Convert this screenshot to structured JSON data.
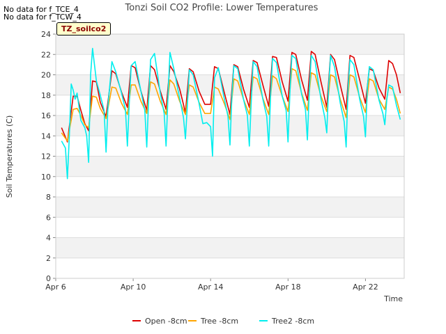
{
  "no_data_lines": [
    "No data for f_TCE_4",
    "No data for f_TCW_4"
  ],
  "badge": "TZ_soilco2",
  "chart_data": {
    "type": "line",
    "title": "Tonzi Soil CO2 Profile: Lower Temperatures",
    "xlabel": "Time",
    "ylabel": "Soil Temperatures (C)",
    "ylim": [
      0,
      24
    ],
    "yticks": [
      0,
      2,
      4,
      6,
      8,
      10,
      12,
      14,
      16,
      18,
      20,
      22,
      24
    ],
    "xlim": [
      6,
      24
    ],
    "xticks": [
      {
        "value": 6,
        "label": "Apr 6"
      },
      {
        "value": 10,
        "label": "Apr 10"
      },
      {
        "value": 14,
        "label": "Apr 14"
      },
      {
        "value": 18,
        "label": "Apr 18"
      },
      {
        "value": 22,
        "label": "Apr 22"
      }
    ],
    "grid": true,
    "legend_placement": "bottom-center",
    "series": [
      {
        "name": "Open -8cm",
        "color": "#dd0000",
        "points": [
          [
            6.3,
            14.8
          ],
          [
            6.6,
            13.4
          ],
          [
            6.9,
            17.9
          ],
          [
            7.1,
            17.9
          ],
          [
            7.3,
            16.5
          ],
          [
            7.5,
            15.2
          ],
          [
            7.7,
            14.5
          ],
          [
            7.9,
            19.4
          ],
          [
            8.1,
            19.3
          ],
          [
            8.3,
            17.3
          ],
          [
            8.6,
            15.9
          ],
          [
            8.9,
            20.4
          ],
          [
            9.1,
            20.1
          ],
          [
            9.4,
            18.3
          ],
          [
            9.7,
            16.8
          ],
          [
            9.9,
            20.9
          ],
          [
            10.1,
            20.7
          ],
          [
            10.4,
            18.4
          ],
          [
            10.7,
            16.5
          ],
          [
            10.9,
            20.9
          ],
          [
            11.1,
            20.5
          ],
          [
            11.4,
            18.4
          ],
          [
            11.7,
            16.6
          ],
          [
            11.9,
            20.9
          ],
          [
            12.1,
            20.3
          ],
          [
            12.4,
            18.6
          ],
          [
            12.7,
            16.3
          ],
          [
            12.9,
            20.6
          ],
          [
            13.1,
            20.3
          ],
          [
            13.4,
            18.4
          ],
          [
            13.7,
            17.1
          ],
          [
            14.0,
            17.1
          ],
          [
            14.2,
            20.8
          ],
          [
            14.4,
            20.6
          ],
          [
            14.7,
            18.3
          ],
          [
            15.0,
            16.1
          ],
          [
            15.2,
            21.0
          ],
          [
            15.4,
            20.8
          ],
          [
            15.7,
            18.6
          ],
          [
            16.0,
            16.8
          ],
          [
            16.2,
            21.4
          ],
          [
            16.4,
            21.2
          ],
          [
            16.7,
            19.0
          ],
          [
            17.0,
            16.9
          ],
          [
            17.2,
            21.8
          ],
          [
            17.4,
            21.7
          ],
          [
            17.7,
            19.3
          ],
          [
            18.0,
            17.4
          ],
          [
            18.2,
            22.2
          ],
          [
            18.4,
            22.0
          ],
          [
            18.7,
            19.5
          ],
          [
            19.0,
            17.5
          ],
          [
            19.2,
            22.3
          ],
          [
            19.4,
            22.0
          ],
          [
            19.7,
            19.3
          ],
          [
            20.0,
            16.8
          ],
          [
            20.2,
            22.0
          ],
          [
            20.4,
            21.5
          ],
          [
            20.7,
            19.0
          ],
          [
            21.0,
            16.6
          ],
          [
            21.2,
            21.9
          ],
          [
            21.4,
            21.7
          ],
          [
            21.7,
            19.5
          ],
          [
            22.0,
            17.2
          ],
          [
            22.2,
            20.6
          ],
          [
            22.4,
            20.4
          ],
          [
            22.7,
            18.7
          ],
          [
            23.0,
            17.6
          ],
          [
            23.2,
            21.4
          ],
          [
            23.4,
            21.1
          ],
          [
            23.6,
            20.0
          ],
          [
            23.8,
            18.2
          ]
        ]
      },
      {
        "name": "Tree -8cm",
        "color": "#ffa500",
        "points": [
          [
            6.3,
            14.3
          ],
          [
            6.6,
            13.5
          ],
          [
            6.9,
            16.6
          ],
          [
            7.1,
            16.7
          ],
          [
            7.3,
            16.0
          ],
          [
            7.5,
            15.1
          ],
          [
            7.7,
            14.8
          ],
          [
            7.9,
            17.9
          ],
          [
            8.1,
            17.8
          ],
          [
            8.3,
            16.7
          ],
          [
            8.6,
            15.7
          ],
          [
            8.9,
            18.8
          ],
          [
            9.1,
            18.7
          ],
          [
            9.4,
            17.2
          ],
          [
            9.7,
            16.1
          ],
          [
            9.9,
            19.0
          ],
          [
            10.1,
            19.0
          ],
          [
            10.4,
            17.4
          ],
          [
            10.7,
            16.2
          ],
          [
            10.9,
            19.3
          ],
          [
            11.1,
            19.1
          ],
          [
            11.4,
            17.4
          ],
          [
            11.7,
            16.1
          ],
          [
            11.9,
            19.5
          ],
          [
            12.1,
            19.1
          ],
          [
            12.4,
            17.4
          ],
          [
            12.7,
            16.1
          ],
          [
            12.9,
            19.0
          ],
          [
            13.1,
            18.8
          ],
          [
            13.4,
            17.3
          ],
          [
            13.7,
            16.2
          ],
          [
            14.0,
            16.2
          ],
          [
            14.2,
            18.8
          ],
          [
            14.4,
            18.6
          ],
          [
            14.7,
            17.2
          ],
          [
            15.0,
            15.6
          ],
          [
            15.2,
            19.6
          ],
          [
            15.4,
            19.4
          ],
          [
            15.7,
            17.6
          ],
          [
            16.0,
            16.1
          ],
          [
            16.2,
            19.8
          ],
          [
            16.4,
            19.6
          ],
          [
            16.7,
            17.7
          ],
          [
            17.0,
            16.1
          ],
          [
            17.2,
            19.9
          ],
          [
            17.4,
            19.6
          ],
          [
            17.7,
            17.9
          ],
          [
            18.0,
            16.4
          ],
          [
            18.2,
            20.6
          ],
          [
            18.4,
            20.4
          ],
          [
            18.7,
            18.2
          ],
          [
            19.0,
            16.5
          ],
          [
            19.2,
            20.2
          ],
          [
            19.4,
            20.0
          ],
          [
            19.7,
            17.9
          ],
          [
            20.0,
            16.4
          ],
          [
            20.2,
            20.0
          ],
          [
            20.4,
            19.8
          ],
          [
            20.7,
            17.6
          ],
          [
            21.0,
            15.8
          ],
          [
            21.2,
            20.0
          ],
          [
            21.4,
            19.8
          ],
          [
            21.7,
            17.8
          ],
          [
            22.0,
            16.3
          ],
          [
            22.2,
            19.6
          ],
          [
            22.4,
            19.4
          ],
          [
            22.7,
            17.6
          ],
          [
            23.0,
            16.6
          ],
          [
            23.2,
            18.8
          ],
          [
            23.4,
            18.6
          ],
          [
            23.6,
            17.6
          ],
          [
            23.8,
            16.2
          ]
        ]
      },
      {
        "name": "Tree2 -8cm",
        "color": "#00eeee",
        "points": [
          [
            6.3,
            13.5
          ],
          [
            6.5,
            12.8
          ],
          [
            6.6,
            9.8
          ],
          [
            6.7,
            13.8
          ],
          [
            6.8,
            19.1
          ],
          [
            6.9,
            18.5
          ],
          [
            7.0,
            17.6
          ],
          [
            7.1,
            18.2
          ],
          [
            7.3,
            15.5
          ],
          [
            7.5,
            14.8
          ],
          [
            7.6,
            14.0
          ],
          [
            7.7,
            11.4
          ],
          [
            7.8,
            20.0
          ],
          [
            7.9,
            22.6
          ],
          [
            8.1,
            19.4
          ],
          [
            8.3,
            18.0
          ],
          [
            8.5,
            16.5
          ],
          [
            8.6,
            12.4
          ],
          [
            8.7,
            17.0
          ],
          [
            8.9,
            21.3
          ],
          [
            9.1,
            20.3
          ],
          [
            9.4,
            18.2
          ],
          [
            9.6,
            16.6
          ],
          [
            9.7,
            13.0
          ],
          [
            9.8,
            17.4
          ],
          [
            9.9,
            20.9
          ],
          [
            10.1,
            21.3
          ],
          [
            10.4,
            18.4
          ],
          [
            10.6,
            16.5
          ],
          [
            10.7,
            12.9
          ],
          [
            10.8,
            17.6
          ],
          [
            10.9,
            21.5
          ],
          [
            11.1,
            22.1
          ],
          [
            11.4,
            18.2
          ],
          [
            11.6,
            16.2
          ],
          [
            11.7,
            13.0
          ],
          [
            11.8,
            18.0
          ],
          [
            11.9,
            22.2
          ],
          [
            12.1,
            20.6
          ],
          [
            12.4,
            17.7
          ],
          [
            12.6,
            15.8
          ],
          [
            12.7,
            13.7
          ],
          [
            12.9,
            20.5
          ],
          [
            13.1,
            20.0
          ],
          [
            13.4,
            17.2
          ],
          [
            13.6,
            15.2
          ],
          [
            13.8,
            15.3
          ],
          [
            14.0,
            14.9
          ],
          [
            14.1,
            12.0
          ],
          [
            14.2,
            19.7
          ],
          [
            14.4,
            20.7
          ],
          [
            14.7,
            17.7
          ],
          [
            14.9,
            15.9
          ],
          [
            15.0,
            13.1
          ],
          [
            15.1,
            18.0
          ],
          [
            15.2,
            20.9
          ],
          [
            15.4,
            20.6
          ],
          [
            15.7,
            17.6
          ],
          [
            15.9,
            16.0
          ],
          [
            16.0,
            13.0
          ],
          [
            16.1,
            17.5
          ],
          [
            16.2,
            21.3
          ],
          [
            16.4,
            20.8
          ],
          [
            16.7,
            17.6
          ],
          [
            16.9,
            15.9
          ],
          [
            17.0,
            13.0
          ],
          [
            17.1,
            18.0
          ],
          [
            17.2,
            21.6
          ],
          [
            17.4,
            21.2
          ],
          [
            17.7,
            17.9
          ],
          [
            17.9,
            16.5
          ],
          [
            18.0,
            13.4
          ],
          [
            18.1,
            18.4
          ],
          [
            18.2,
            21.9
          ],
          [
            18.4,
            21.6
          ],
          [
            18.7,
            18.1
          ],
          [
            18.9,
            16.6
          ],
          [
            19.0,
            13.6
          ],
          [
            19.1,
            18.6
          ],
          [
            19.2,
            21.9
          ],
          [
            19.4,
            21.3
          ],
          [
            19.7,
            17.6
          ],
          [
            19.9,
            15.8
          ],
          [
            20.0,
            14.3
          ],
          [
            20.1,
            19.0
          ],
          [
            20.2,
            21.9
          ],
          [
            20.4,
            20.8
          ],
          [
            20.7,
            17.2
          ],
          [
            20.9,
            15.4
          ],
          [
            21.0,
            12.9
          ],
          [
            21.1,
            18.6
          ],
          [
            21.2,
            21.5
          ],
          [
            21.4,
            21.0
          ],
          [
            21.7,
            17.6
          ],
          [
            21.9,
            15.9
          ],
          [
            22.0,
            13.9
          ],
          [
            22.1,
            18.8
          ],
          [
            22.2,
            20.8
          ],
          [
            22.4,
            20.5
          ],
          [
            22.7,
            17.5
          ],
          [
            22.9,
            16.2
          ],
          [
            23.0,
            15.1
          ],
          [
            23.1,
            17.5
          ],
          [
            23.2,
            19.0
          ],
          [
            23.4,
            18.8
          ],
          [
            23.6,
            17.0
          ],
          [
            23.8,
            15.6
          ]
        ]
      }
    ]
  }
}
